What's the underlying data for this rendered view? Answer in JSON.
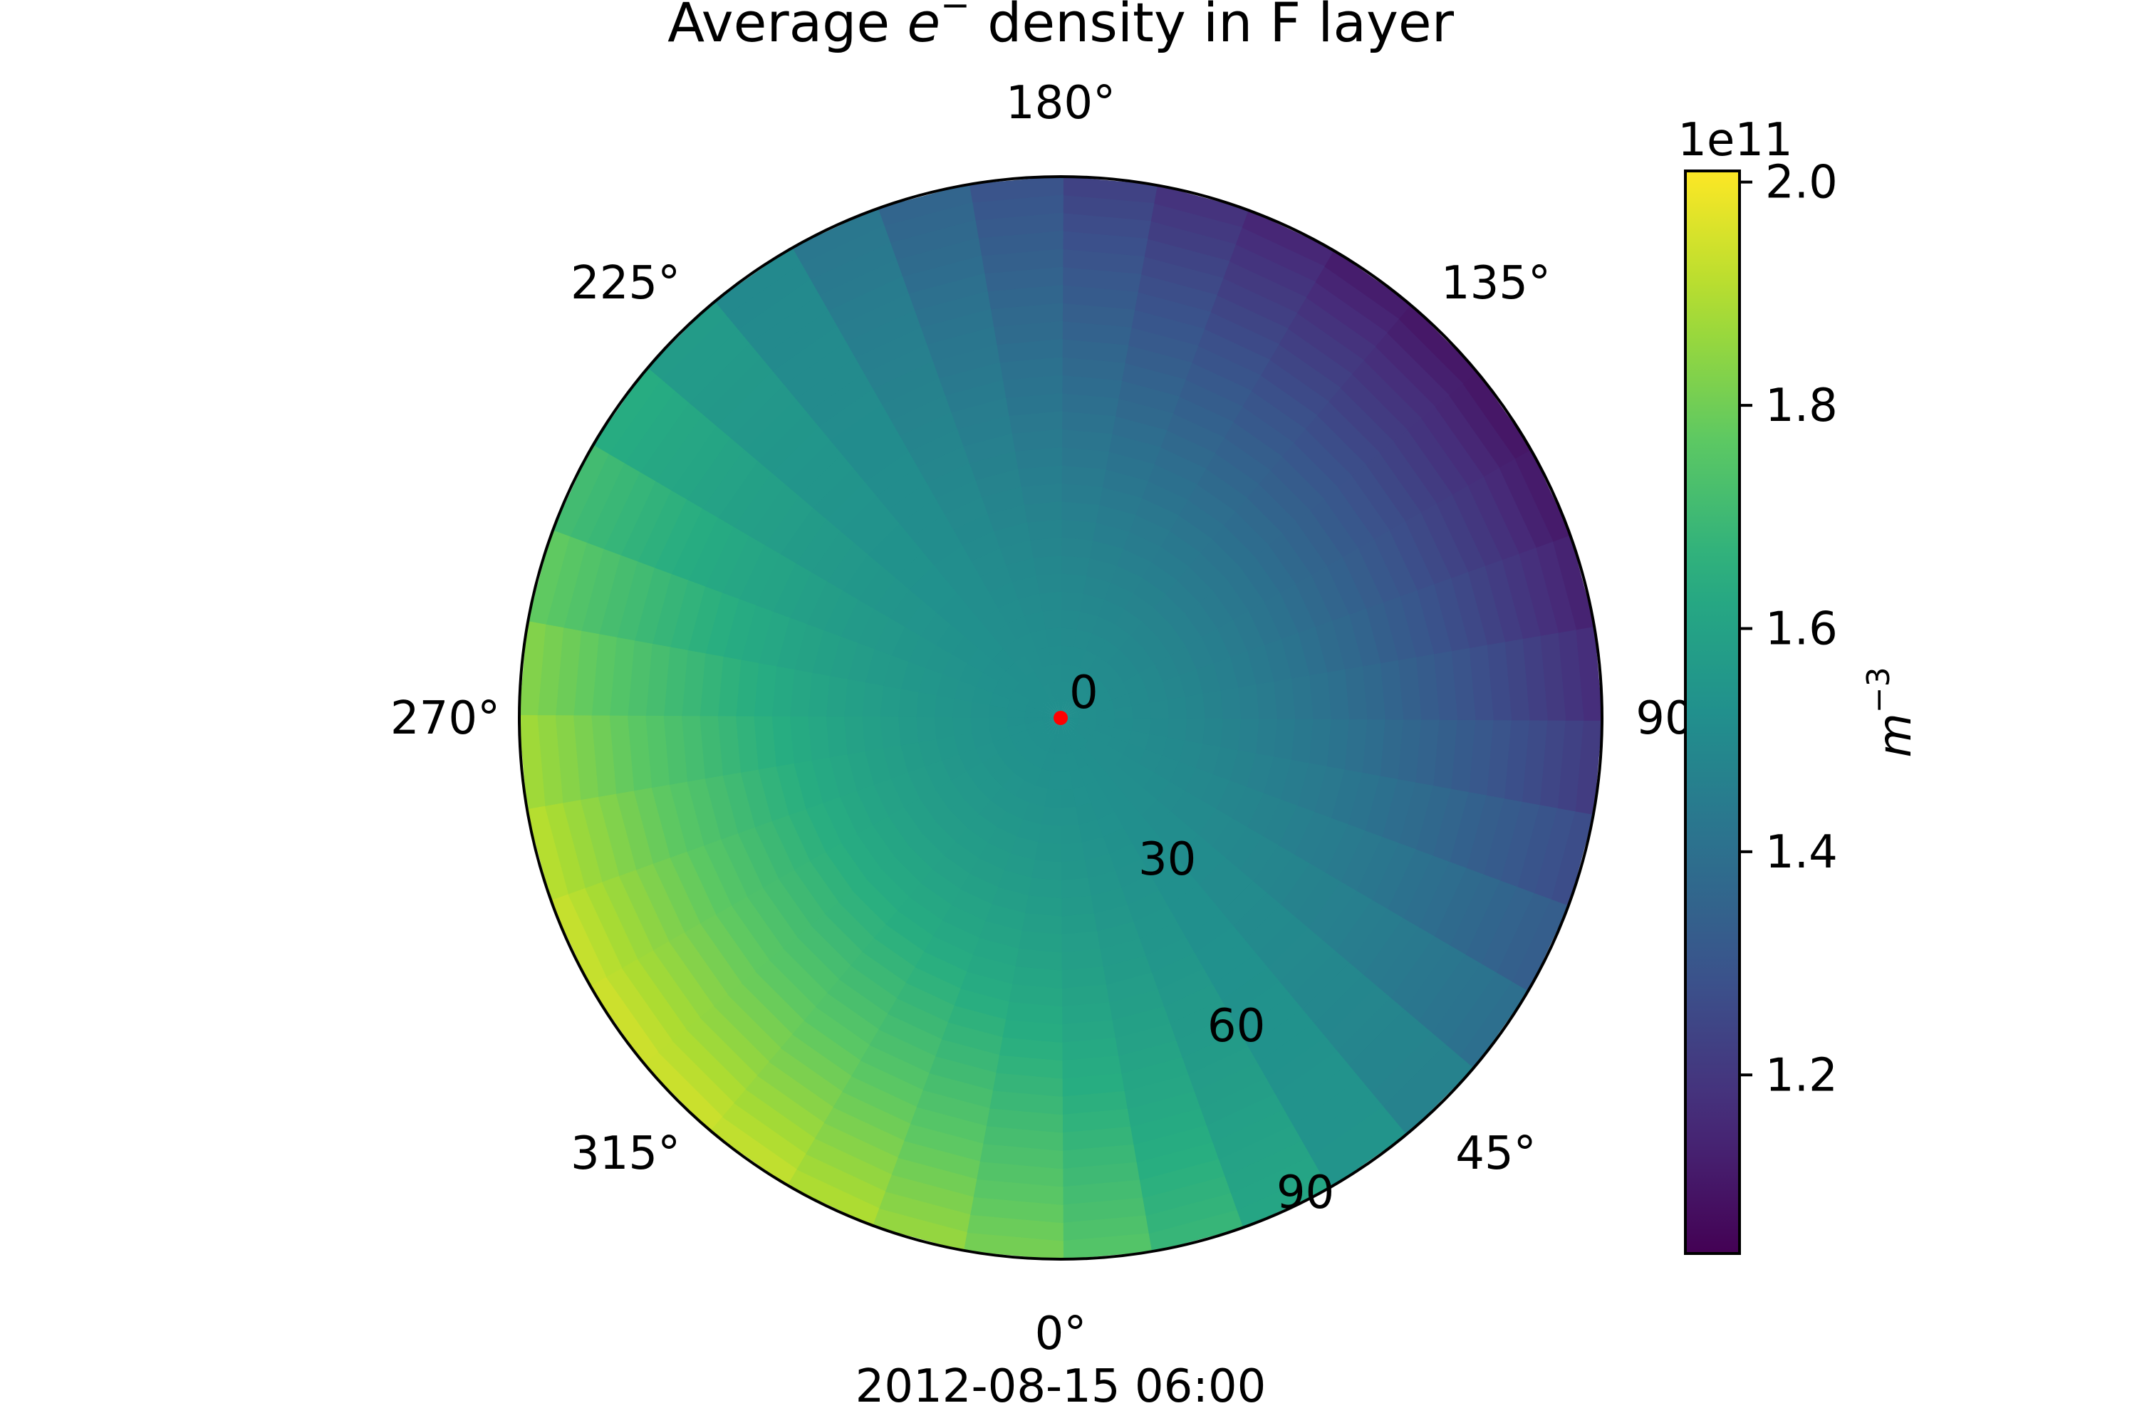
{
  "chart_data": {
    "type": "heatmap",
    "projection": "polar",
    "title_prefix": "Average ",
    "title_symbol": "e",
    "title_superscript": "−",
    "title_suffix": " density in F layer",
    "subtitle": "2012-08-15 06:00",
    "angular_ticks": [
      "0°",
      "45°",
      "90°",
      "135°",
      "180°",
      "225°",
      "270°",
      "315°"
    ],
    "radial_ticks": [
      "0",
      "30",
      "60",
      "90"
    ],
    "radial_range": [
      0,
      90
    ],
    "colorbar": {
      "label_base": "m",
      "label_exponent": "−3",
      "offset_text": "1e11",
      "ticks": [
        "1.2",
        "1.4",
        "1.6",
        "1.8",
        "2.0"
      ],
      "range": [
        1.04,
        2.01
      ],
      "colormap": "viridis"
    },
    "field": {
      "description_values_in_1e11_m-3": true,
      "mean": 1.52,
      "azimuthal_amplitude": 0.43,
      "azimuthal_peak_deg": 308,
      "edge_min": 1.04,
      "edge_max": 2.0
    },
    "marker": {
      "radius": 0,
      "color": "#ff0000"
    },
    "grid": false
  },
  "colors": {
    "marker": "#ff0000",
    "axes": "#000000",
    "background": "#ffffff"
  }
}
